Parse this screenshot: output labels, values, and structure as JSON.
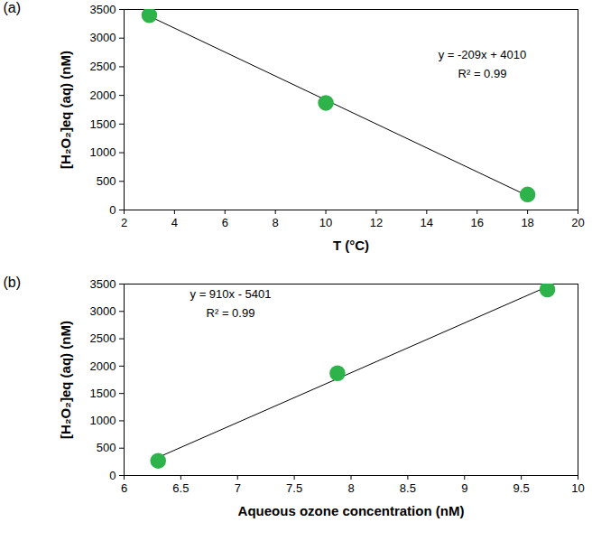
{
  "chart_data": [
    {
      "type": "scatter",
      "title": "(a)",
      "x_label": "T (°C)",
      "y_label": "[H₂O₂]eq (aq) (nM)",
      "x": [
        3,
        10,
        18
      ],
      "values": [
        3400,
        1870,
        270
      ],
      "color": "#2db34a",
      "marker": "circle",
      "trendline": {
        "x": [
          3,
          18
        ],
        "values": [
          3383,
          248
        ]
      },
      "annotations": [
        "y = -209x + 4010",
        "R² = 0.99"
      ],
      "xlim": [
        2,
        20
      ],
      "xticks": [
        2,
        4,
        6,
        8,
        10,
        12,
        14,
        16,
        18,
        20
      ],
      "ylim": [
        0,
        3500
      ],
      "yticks": [
        0,
        500,
        1000,
        1500,
        2000,
        2500,
        3000,
        3500
      ],
      "grid": false
    },
    {
      "type": "scatter",
      "title": "(b)",
      "x_label": "Aqueous ozone concentration (nM)",
      "y_label": "[H₂O₂]eq (aq) (nM)",
      "x": [
        6.3,
        7.88,
        9.73
      ],
      "values": [
        270,
        1870,
        3400
      ],
      "color": "#2db34a",
      "marker": "circle",
      "trendline": {
        "x": [
          6.3,
          9.73
        ],
        "values": [
          332,
          3453
        ]
      },
      "annotations": [
        "y = 910x - 5401",
        "R² = 0.99"
      ],
      "xlim": [
        6,
        10
      ],
      "xticks": [
        6,
        6.5,
        7,
        7.5,
        8,
        8.5,
        9,
        9.5,
        10
      ],
      "ylim": [
        0,
        3500
      ],
      "yticks": [
        0,
        500,
        1000,
        1500,
        2000,
        2500,
        3000,
        3500
      ],
      "grid": false
    }
  ]
}
